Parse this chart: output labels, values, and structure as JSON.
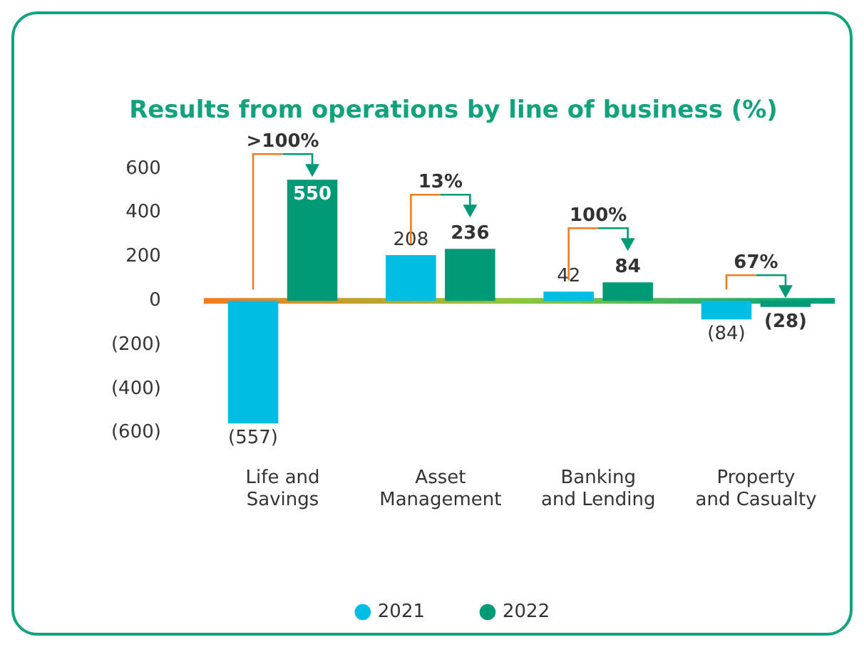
{
  "chart_data": {
    "type": "bar",
    "title": "Results from operations by line of business (%)",
    "categories": [
      "Life and Savings",
      "Asset Management",
      "Banking and Lending",
      "Property and Casualty"
    ],
    "series": [
      {
        "name": "2021",
        "color": "#00bde3",
        "values": [
          -557,
          208,
          42,
          -84
        ],
        "value_labels": [
          "(557)",
          "208",
          "42",
          "(84)"
        ]
      },
      {
        "name": "2022",
        "color": "#009a76",
        "values": [
          550,
          236,
          84,
          -28
        ],
        "value_labels": [
          "550",
          "236",
          "84",
          "(28)"
        ]
      }
    ],
    "ylim": [
      -600,
      600
    ],
    "yticks": [
      {
        "value": -600,
        "label": "(600)"
      },
      {
        "value": -400,
        "label": "(400)"
      },
      {
        "value": -200,
        "label": "(200)"
      },
      0,
      200,
      400,
      600
    ],
    "ref_lines": [
      {
        "axis": "y",
        "value": 0
      }
    ],
    "legend": "bottom",
    "annotations": [
      ">100%",
      "13%",
      "100%",
      "67%"
    ]
  }
}
